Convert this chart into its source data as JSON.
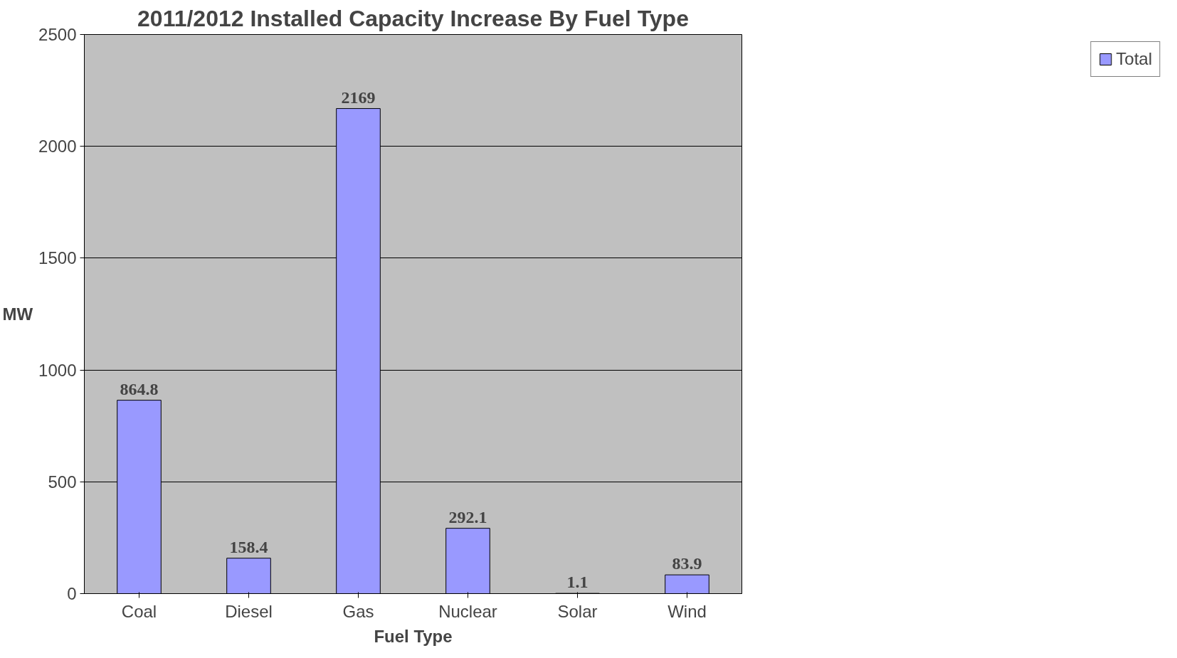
{
  "chart_data": {
    "type": "bar",
    "title": "2011/2012 Installed Capacity Increase By Fuel Type",
    "xlabel": "Fuel Type",
    "ylabel": "MW",
    "categories": [
      "Coal",
      "Diesel",
      "Gas",
      "Nuclear",
      "Solar",
      "Wind"
    ],
    "series": [
      {
        "name": "Total",
        "color": "#9999ff",
        "values": [
          864.8,
          158.4,
          2169,
          292.1,
          1.1,
          83.9
        ]
      }
    ],
    "ylim": [
      0,
      2500
    ],
    "yticks": [
      0,
      500,
      1000,
      1500,
      2000,
      2500
    ],
    "grid": "y",
    "legend": "right",
    "data_labels": true
  }
}
